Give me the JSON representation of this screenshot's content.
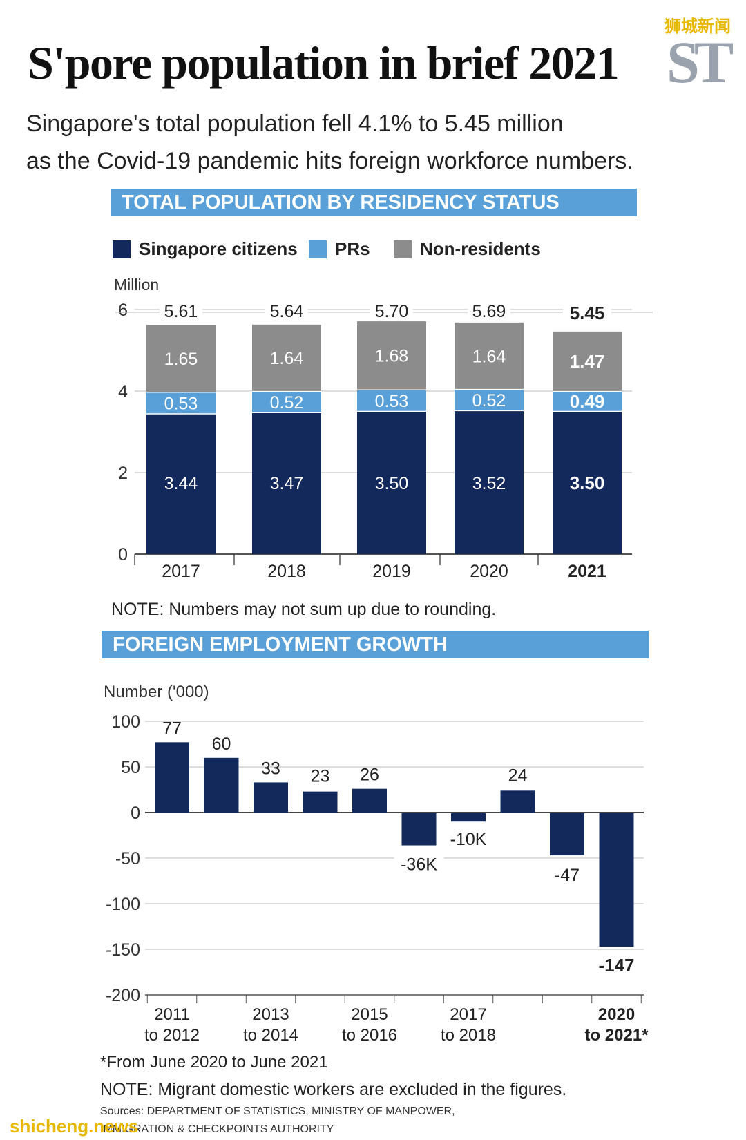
{
  "watermark_top": "狮城新闻",
  "title": "S'pore population in brief 2021",
  "logo": "ST",
  "subtitle_line1": "Singapore's total population fell 4.1% to 5.45 million",
  "subtitle_line2": "as the Covid-19 pandemic hits foreign workforce numbers.",
  "colors": {
    "citizens": "#13285b",
    "prs": "#5aa0d8",
    "non_residents": "#8c8c8c",
    "section_bar": "#5aa0d8",
    "logo": "#9aa3ad",
    "watermark": "#e8b800"
  },
  "section1": {
    "heading": "TOTAL POPULATION BY RESIDENCY STATUS",
    "note": "NOTE: Numbers may not sum up due to rounding."
  },
  "section2": {
    "heading": "FOREIGN EMPLOYMENT GROWTH"
  },
  "legend": {
    "citizens": "Singapore citizens",
    "prs": "PRs",
    "non_residents": "Non-residents"
  },
  "chart_data": [
    {
      "type": "bar",
      "stacked": true,
      "title": "TOTAL POPULATION BY RESIDENCY STATUS",
      "ylabel": "Million",
      "ylim": [
        0,
        6
      ],
      "yticks": [
        0,
        2,
        4,
        6
      ],
      "categories": [
        "2017",
        "2018",
        "2019",
        "2020",
        "2021"
      ],
      "category_labels": [
        "2017",
        "2018",
        "2019",
        "2020",
        "2021"
      ],
      "series": [
        {
          "name": "Singapore citizens",
          "values": [
            3.44,
            3.47,
            3.5,
            3.52,
            3.5
          ],
          "labels": [
            "3.44",
            "3.47",
            "3.50",
            "3.52",
            "3.50"
          ]
        },
        {
          "name": "PRs",
          "values": [
            0.53,
            0.52,
            0.53,
            0.52,
            0.49
          ],
          "labels": [
            "0.53",
            "0.52",
            "0.53",
            "0.52",
            "0.49"
          ]
        },
        {
          "name": "Non-residents",
          "values": [
            1.65,
            1.64,
            1.68,
            1.64,
            1.47
          ],
          "labels": [
            "1.65",
            "1.64",
            "1.68",
            "1.64",
            "1.47"
          ]
        }
      ],
      "totals": [
        5.61,
        5.64,
        5.7,
        5.69,
        5.45
      ],
      "total_labels": [
        "5.61",
        "5.64",
        "5.70",
        "5.69",
        "5.45"
      ],
      "highlight_index": 4
    },
    {
      "type": "bar",
      "title": "FOREIGN EMPLOYMENT GROWTH",
      "ylabel": "Number ('000)",
      "ylim": [
        -200,
        100
      ],
      "yticks": [
        100,
        50,
        0,
        -50,
        -100,
        -150,
        -200
      ],
      "values": [
        77,
        60,
        33,
        23,
        26,
        -36,
        -10,
        24,
        -47,
        -147
      ],
      "value_labels": [
        "77",
        "60",
        "33",
        "23",
        "26",
        "-36K",
        "-10K",
        "24",
        "-47",
        "-147"
      ],
      "category_labels": [
        {
          "line1": "2011",
          "line2": "to 2012"
        },
        {
          "line1": "2013",
          "line2": "to 2014"
        },
        {
          "line1": "2015",
          "line2": "to 2016"
        },
        {
          "line1": "2017",
          "line2": "to 2018"
        },
        {
          "line1": "2020",
          "line2": "to 2021*"
        }
      ],
      "highlight_index": 9
    }
  ],
  "footnote": "*From June 2020 to June 2021",
  "note2": "NOTE: Migrant domestic workers are excluded in the figures.",
  "sources_line1": "Sources: DEPARTMENT OF STATISTICS, MINISTRY OF MANPOWER,",
  "sources_line2": "IMMIGRATION & CHECKPOINTS AUTHORITY",
  "watermark_bottom": "shicheng.news"
}
